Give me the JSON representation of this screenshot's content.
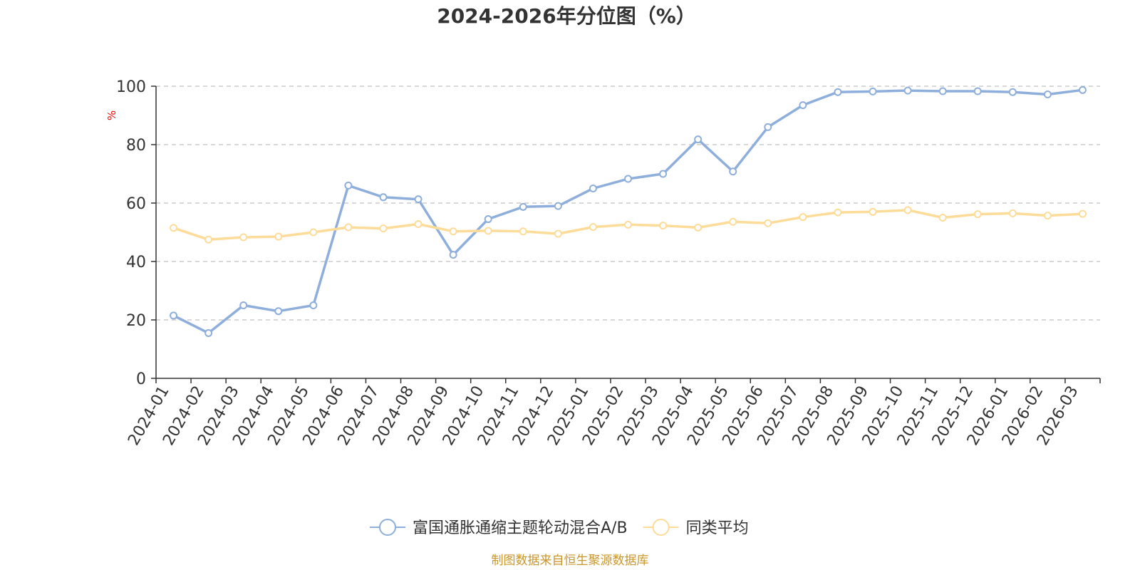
{
  "chart_data": {
    "type": "line",
    "title": "2024-2026年分位图（%）",
    "ylabel": "%",
    "xlabel": "",
    "ylim": [
      0,
      100
    ],
    "yticks": [
      0,
      20,
      40,
      60,
      80,
      100
    ],
    "grid": "horizontal-dashed",
    "legend_position": "bottom-center",
    "categories": [
      "2024-01",
      "2024-02",
      "2024-03",
      "2024-04",
      "2024-05",
      "2024-06",
      "2024-07",
      "2024-08",
      "2024-09",
      "2024-10",
      "2024-11",
      "2024-12",
      "2025-01",
      "2025-02",
      "2025-03",
      "2025-04",
      "2025-05",
      "2025-06",
      "2025-07",
      "2025-08",
      "2025-09",
      "2025-10",
      "2025-11",
      "2025-12",
      "2026-01",
      "2026-02",
      "2026-03"
    ],
    "series": [
      {
        "name": "富国通胀通缩主题轮动混合A/B",
        "color": "#8eaedb",
        "values": [
          21.5,
          15.5,
          25,
          23,
          25,
          66,
          62,
          61.3,
          42.3,
          54.5,
          58.7,
          59,
          65,
          68.3,
          70,
          81.8,
          70.8,
          86,
          93.5,
          98,
          98.2,
          98.5,
          98.3,
          98.3,
          98,
          97.2,
          98.7
        ]
      },
      {
        "name": "同类平均",
        "color": "#fddc9a",
        "values": [
          51.5,
          47.5,
          48.3,
          48.5,
          50,
          51.7,
          51.3,
          52.8,
          50.3,
          50.5,
          50.3,
          49.5,
          51.8,
          52.6,
          52.3,
          51.6,
          53.6,
          53.1,
          55.2,
          56.8,
          57,
          57.6,
          55,
          56.2,
          56.5,
          55.7,
          56.3
        ]
      }
    ]
  },
  "source": "制图数据来自恒生聚源数据库",
  "colors": {
    "text": "#333333",
    "axis": "#333333",
    "grid": "#cccccc",
    "unit_label": "#ff0000",
    "source_text": "#c9962a"
  }
}
